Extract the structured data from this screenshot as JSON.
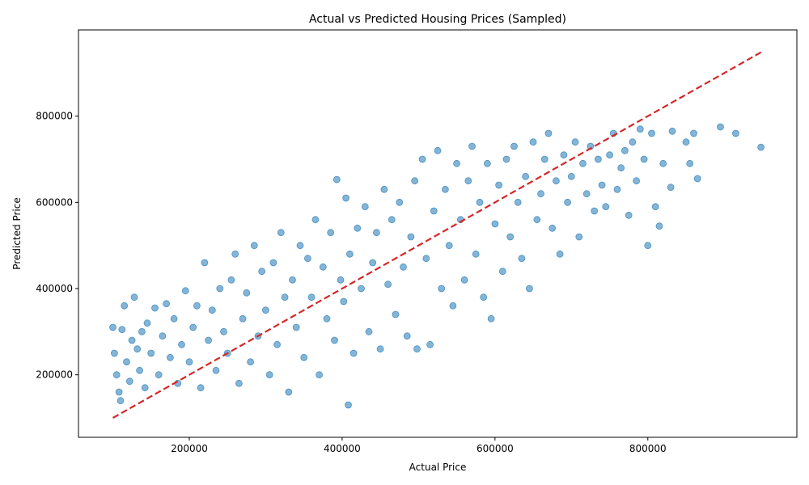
{
  "chart_data": {
    "type": "scatter",
    "title": "Actual vs Predicted Housing Prices (Sampled)",
    "xlabel": "Actual Price",
    "ylabel": "Predicted Price",
    "xlim": [
      55000,
      995000
    ],
    "ylim": [
      55000,
      1000000
    ],
    "xticks": [
      {
        "value": 200000,
        "label": "200000"
      },
      {
        "value": 400000,
        "label": "400000"
      },
      {
        "value": 600000,
        "label": "600000"
      },
      {
        "value": 800000,
        "label": "800000"
      }
    ],
    "yticks": [
      {
        "value": 200000,
        "label": "200000"
      },
      {
        "value": 400000,
        "label": "400000"
      },
      {
        "value": 600000,
        "label": "600000"
      },
      {
        "value": 800000,
        "label": "800000"
      }
    ],
    "grid": false,
    "legend": "none",
    "colors": {
      "points": "#1f77b4",
      "reference_line": "#d62728"
    },
    "reference_line": {
      "style": "dashed",
      "x": [
        100000,
        950000
      ],
      "y": [
        100000,
        950000
      ]
    },
    "series": [
      {
        "points": [
          [
            100000,
            310000
          ],
          [
            102000,
            250000
          ],
          [
            105000,
            200000
          ],
          [
            108000,
            160000
          ],
          [
            110000,
            140000
          ],
          [
            112000,
            305000
          ],
          [
            115000,
            360000
          ],
          [
            118000,
            230000
          ],
          [
            122000,
            185000
          ],
          [
            125000,
            280000
          ],
          [
            128000,
            380000
          ],
          [
            132000,
            260000
          ],
          [
            135000,
            210000
          ],
          [
            138000,
            300000
          ],
          [
            142000,
            170000
          ],
          [
            145000,
            320000
          ],
          [
            150000,
            250000
          ],
          [
            155000,
            355000
          ],
          [
            160000,
            200000
          ],
          [
            165000,
            290000
          ],
          [
            170000,
            365000
          ],
          [
            175000,
            240000
          ],
          [
            180000,
            330000
          ],
          [
            185000,
            180000
          ],
          [
            190000,
            270000
          ],
          [
            195000,
            395000
          ],
          [
            200000,
            230000
          ],
          [
            205000,
            310000
          ],
          [
            210000,
            360000
          ],
          [
            215000,
            170000
          ],
          [
            220000,
            460000
          ],
          [
            225000,
            280000
          ],
          [
            230000,
            350000
          ],
          [
            235000,
            210000
          ],
          [
            240000,
            400000
          ],
          [
            245000,
            300000
          ],
          [
            250000,
            250000
          ],
          [
            255000,
            420000
          ],
          [
            260000,
            480000
          ],
          [
            265000,
            180000
          ],
          [
            270000,
            330000
          ],
          [
            275000,
            390000
          ],
          [
            280000,
            230000
          ],
          [
            285000,
            500000
          ],
          [
            290000,
            290000
          ],
          [
            295000,
            440000
          ],
          [
            300000,
            350000
          ],
          [
            305000,
            200000
          ],
          [
            310000,
            460000
          ],
          [
            315000,
            270000
          ],
          [
            320000,
            530000
          ],
          [
            325000,
            380000
          ],
          [
            330000,
            160000
          ],
          [
            335000,
            420000
          ],
          [
            340000,
            310000
          ],
          [
            345000,
            500000
          ],
          [
            350000,
            240000
          ],
          [
            355000,
            470000
          ],
          [
            360000,
            380000
          ],
          [
            365000,
            560000
          ],
          [
            370000,
            200000
          ],
          [
            375000,
            450000
          ],
          [
            380000,
            330000
          ],
          [
            385000,
            530000
          ],
          [
            390000,
            280000
          ],
          [
            393000,
            653000
          ],
          [
            398000,
            420000
          ],
          [
            402000,
            370000
          ],
          [
            405000,
            610000
          ],
          [
            408000,
            130000
          ],
          [
            410000,
            480000
          ],
          [
            415000,
            250000
          ],
          [
            420000,
            540000
          ],
          [
            425000,
            400000
          ],
          [
            430000,
            590000
          ],
          [
            435000,
            300000
          ],
          [
            440000,
            460000
          ],
          [
            445000,
            530000
          ],
          [
            450000,
            260000
          ],
          [
            455000,
            630000
          ],
          [
            460000,
            410000
          ],
          [
            465000,
            560000
          ],
          [
            470000,
            340000
          ],
          [
            475000,
            600000
          ],
          [
            480000,
            450000
          ],
          [
            485000,
            290000
          ],
          [
            490000,
            520000
          ],
          [
            495000,
            650000
          ],
          [
            498000,
            260000
          ],
          [
            505000,
            700000
          ],
          [
            510000,
            470000
          ],
          [
            515000,
            270000
          ],
          [
            520000,
            580000
          ],
          [
            525000,
            720000
          ],
          [
            530000,
            400000
          ],
          [
            535000,
            630000
          ],
          [
            540000,
            500000
          ],
          [
            545000,
            360000
          ],
          [
            550000,
            690000
          ],
          [
            555000,
            560000
          ],
          [
            560000,
            420000
          ],
          [
            565000,
            650000
          ],
          [
            570000,
            730000
          ],
          [
            575000,
            480000
          ],
          [
            580000,
            600000
          ],
          [
            585000,
            380000
          ],
          [
            590000,
            690000
          ],
          [
            595000,
            330000
          ],
          [
            600000,
            550000
          ],
          [
            605000,
            640000
          ],
          [
            610000,
            440000
          ],
          [
            615000,
            700000
          ],
          [
            620000,
            520000
          ],
          [
            625000,
            730000
          ],
          [
            630000,
            600000
          ],
          [
            635000,
            470000
          ],
          [
            640000,
            660000
          ],
          [
            645000,
            400000
          ],
          [
            650000,
            740000
          ],
          [
            655000,
            560000
          ],
          [
            660000,
            620000
          ],
          [
            665000,
            700000
          ],
          [
            670000,
            760000
          ],
          [
            675000,
            540000
          ],
          [
            680000,
            650000
          ],
          [
            685000,
            480000
          ],
          [
            690000,
            710000
          ],
          [
            695000,
            600000
          ],
          [
            700000,
            660000
          ],
          [
            705000,
            740000
          ],
          [
            710000,
            520000
          ],
          [
            715000,
            690000
          ],
          [
            720000,
            620000
          ],
          [
            725000,
            730000
          ],
          [
            730000,
            580000
          ],
          [
            735000,
            700000
          ],
          [
            740000,
            640000
          ],
          [
            745000,
            590000
          ],
          [
            750000,
            710000
          ],
          [
            755000,
            760000
          ],
          [
            760000,
            630000
          ],
          [
            765000,
            680000
          ],
          [
            770000,
            720000
          ],
          [
            775000,
            570000
          ],
          [
            780000,
            740000
          ],
          [
            785000,
            650000
          ],
          [
            790000,
            770000
          ],
          [
            795000,
            700000
          ],
          [
            800000,
            500000
          ],
          [
            805000,
            760000
          ],
          [
            810000,
            590000
          ],
          [
            815000,
            545000
          ],
          [
            820000,
            690000
          ],
          [
            830000,
            635000
          ],
          [
            832000,
            765000
          ],
          [
            850000,
            740000
          ],
          [
            855000,
            690000
          ],
          [
            860000,
            760000
          ],
          [
            865000,
            655000
          ],
          [
            895000,
            775000
          ],
          [
            915000,
            760000
          ],
          [
            948000,
            728000
          ]
        ]
      }
    ]
  }
}
